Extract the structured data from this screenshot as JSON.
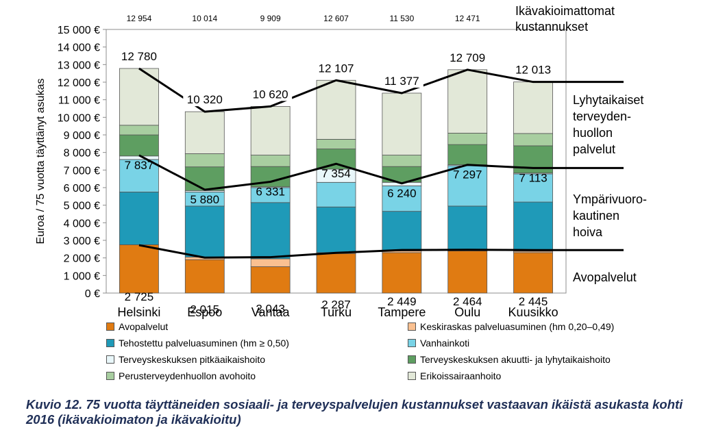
{
  "chart_data": {
    "type": "bar",
    "stacked": true,
    "ylabel": "Euroa / 75 vuotta täyttänyt asukas",
    "ylim": [
      0,
      15000
    ],
    "yticks": [
      "0 €",
      "1 000 €",
      "2 000 €",
      "3 000 €",
      "4 000 €",
      "5 000 €",
      "6 000 €",
      "7 000 €",
      "8 000 €",
      "9 000 €",
      "10 000 €",
      "11 000 €",
      "12 000 €",
      "13 000 €",
      "14 000 €",
      "15 000 €"
    ],
    "categories": [
      "Helsinki",
      "Espoo",
      "Vantaa",
      "Turku",
      "Tampere",
      "Oulu",
      "Kuusikko"
    ],
    "series": [
      {
        "name": "Avopalvelut",
        "color": "#e07b12",
        "values": [
          2750,
          1900,
          1500,
          2250,
          2300,
          2400,
          2300
        ]
      },
      {
        "name": "Keskiraskas palveluasuminen (hm 0,20–0,49)",
        "color": "#fac090",
        "values": [
          0,
          150,
          450,
          50,
          100,
          50,
          80
        ]
      },
      {
        "name": "Tehostettu palveluasuminen (hm ≥ 0,50)",
        "color": "#1f9ab8",
        "values": [
          3000,
          2900,
          3200,
          2600,
          2250,
          2500,
          2800
        ]
      },
      {
        "name": "Vanhainkoti",
        "color": "#79d3e6",
        "values": [
          1850,
          800,
          850,
          1400,
          1450,
          2300,
          1600
        ]
      },
      {
        "name": "Terveyskeskuksen pitkäaikaishoito",
        "color": "#e9f7fa",
        "values": [
          200,
          80,
          50,
          750,
          200,
          50,
          50
        ]
      },
      {
        "name": "Terveyskeskuksen akuutti- ja lyhytaikaishoito",
        "color": "#5e9e61",
        "values": [
          1200,
          1350,
          1150,
          1150,
          900,
          1150,
          1550
        ]
      },
      {
        "name": "Perusterveydenhuollon avohoito",
        "color": "#a8cea0",
        "values": [
          550,
          750,
          650,
          550,
          650,
          650,
          700
        ]
      },
      {
        "name": "Erikoissairaanhoito",
        "color": "#e2e8d8",
        "values": [
          3230,
          2390,
          2770,
          3357,
          3527,
          3609,
          2933
        ]
      }
    ],
    "unadjusted_totals": [
      "12 954",
      "10 014",
      "9 909",
      "12 607",
      "11 530",
      "12 471"
    ],
    "adjusted_lines": {
      "total": {
        "values": [
          12780,
          10320,
          10620,
          12107,
          11377,
          12709,
          12013
        ],
        "labels": [
          "12 780",
          "10 320",
          "10 620",
          "12 107",
          "11 377",
          "12 709",
          "12 013"
        ]
      },
      "care": {
        "values": [
          7837,
          5880,
          6331,
          7354,
          6240,
          7297,
          7113
        ],
        "labels": [
          "7 837",
          "5 880",
          "6 331",
          "7 354",
          "6 240",
          "7 297",
          "7 113"
        ]
      },
      "avo": {
        "values": [
          2725,
          2015,
          2043,
          2287,
          2449,
          2464,
          2445
        ],
        "labels": [
          "2 725",
          "2 015",
          "2 043",
          "2 287",
          "2 449",
          "2 464",
          "2 445"
        ]
      }
    },
    "right_labels": {
      "top": [
        "Ikävakioimattomat",
        "kustannukset"
      ],
      "short_term": [
        "Lyhytaikaiset",
        "terveyden-",
        "huollon",
        "palvelut"
      ],
      "round_clock": [
        "Ympärivuoro-",
        "kautinen",
        "hoiva"
      ],
      "avo": [
        "Avopalvelut"
      ]
    },
    "caption": "Kuvio 12. 75 vuotta täyttäneiden sosiaali- ja terveyspalvelujen kustannukset vastaavan ikäistä asukasta kohti 2016 (ikävakioimaton ja ikävakioitu)"
  }
}
